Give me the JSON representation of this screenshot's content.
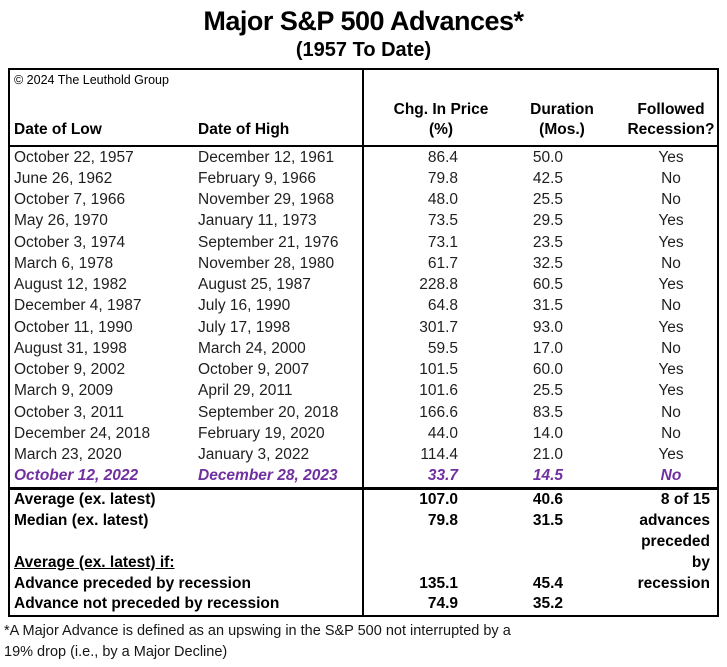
{
  "page": {
    "title": "Major S&P 500 Advances*",
    "subtitle": "(1957 To Date)",
    "copyright": "© 2024 The Leuthold Group",
    "footnote_line1": "*A Major Advance is defined as an upswing in the S&P 500 not interrupted by a",
    "footnote_line2": "19% drop (i.e., by a Major Decline)"
  },
  "header": {
    "date_low": "Date of Low",
    "date_high": "Date of High",
    "chg1": "Chg. In Price",
    "chg2": "(%)",
    "dur1": "Duration",
    "dur2": "(Mos.)",
    "rec1": "Followed",
    "rec2": "Recession?"
  },
  "colors": {
    "highlight_purple": "#7030A0",
    "border_black": "#000000"
  },
  "chart_data": {
    "type": "table",
    "title": "Major S&P 500 Advances*",
    "subtitle": "(1957 To Date)",
    "columns": [
      "Date of Low",
      "Date of High",
      "Chg. In Price (%)",
      "Duration (Mos.)",
      "Followed Recession?"
    ],
    "rows": [
      {
        "low": "October 22, 1957",
        "high": "December 12, 1961",
        "chg": "86.4",
        "dur": "50.0",
        "rec": "Yes",
        "highlight": false
      },
      {
        "low": "June 26, 1962",
        "high": "February 9, 1966",
        "chg": "79.8",
        "dur": "42.5",
        "rec": "No",
        "highlight": false
      },
      {
        "low": "October 7, 1966",
        "high": "November 29, 1968",
        "chg": "48.0",
        "dur": "25.5",
        "rec": "No",
        "highlight": false
      },
      {
        "low": "May 26, 1970",
        "high": "January 11, 1973",
        "chg": "73.5",
        "dur": "29.5",
        "rec": "Yes",
        "highlight": false
      },
      {
        "low": "October 3, 1974",
        "high": "September 21, 1976",
        "chg": "73.1",
        "dur": "23.5",
        "rec": "Yes",
        "highlight": false
      },
      {
        "low": "March 6, 1978",
        "high": "November 28, 1980",
        "chg": "61.7",
        "dur": "32.5",
        "rec": "No",
        "highlight": false
      },
      {
        "low": "August 12, 1982",
        "high": "August 25, 1987",
        "chg": "228.8",
        "dur": "60.5",
        "rec": "Yes",
        "highlight": false
      },
      {
        "low": "December 4, 1987",
        "high": "July 16, 1990",
        "chg": "64.8",
        "dur": "31.5",
        "rec": "No",
        "highlight": false
      },
      {
        "low": "October 11, 1990",
        "high": "July 17, 1998",
        "chg": "301.7",
        "dur": "93.0",
        "rec": "Yes",
        "highlight": false
      },
      {
        "low": "August 31, 1998",
        "high": "March 24, 2000",
        "chg": "59.5",
        "dur": "17.0",
        "rec": "No",
        "highlight": false
      },
      {
        "low": "October 9, 2002",
        "high": "October 9, 2007",
        "chg": "101.5",
        "dur": "60.0",
        "rec": "Yes",
        "highlight": false
      },
      {
        "low": "March 9, 2009",
        "high": "April 29, 2011",
        "chg": "101.6",
        "dur": "25.5",
        "rec": "Yes",
        "highlight": false
      },
      {
        "low": "October 3, 2011",
        "high": "September 20, 2018",
        "chg": "166.6",
        "dur": "83.5",
        "rec": "No",
        "highlight": false
      },
      {
        "low": "December 24, 2018",
        "high": "February 19, 2020",
        "chg": "44.0",
        "dur": "14.0",
        "rec": "No",
        "highlight": false
      },
      {
        "low": "March 23, 2020",
        "high": "January 3, 2022",
        "chg": "114.4",
        "dur": "21.0",
        "rec": "Yes",
        "highlight": false
      },
      {
        "low": "October 12, 2022",
        "high": "December 28, 2023",
        "chg": "33.7",
        "dur": "14.5",
        "rec": "No",
        "highlight": true
      }
    ],
    "summary_rows": [
      {
        "label": "Average (ex. latest)",
        "chg": "107.0",
        "dur": "40.6",
        "note": "8 of 15",
        "underline": false
      },
      {
        "label": "Median (ex. latest)",
        "chg": "79.8",
        "dur": "31.5",
        "note": "advances",
        "underline": false
      },
      {
        "label": "",
        "chg": "",
        "dur": "",
        "note": "preceded",
        "underline": false
      },
      {
        "label": "Average (ex. latest) if:",
        "chg": "",
        "dur": "",
        "note": "by",
        "underline": true
      },
      {
        "label": "Advance preceded by recession",
        "chg": "135.1",
        "dur": "45.4",
        "note": "recession",
        "underline": false
      },
      {
        "label": "Advance not preceded by recession",
        "chg": "74.9",
        "dur": "35.2",
        "note": "",
        "underline": false
      }
    ]
  }
}
